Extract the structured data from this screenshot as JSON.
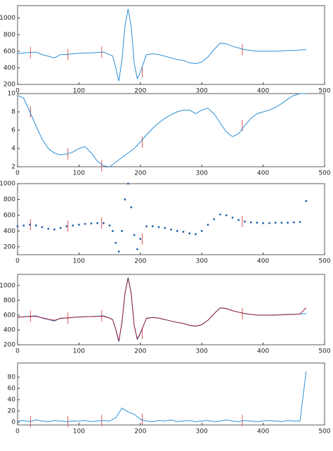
{
  "chart_data": [
    {
      "type": "line",
      "x": [
        0,
        10,
        20,
        30,
        40,
        50,
        60,
        70,
        80,
        90,
        100,
        110,
        120,
        130,
        140,
        150,
        155,
        160,
        165,
        170,
        175,
        180,
        185,
        190,
        195,
        200,
        210,
        220,
        230,
        240,
        250,
        260,
        270,
        280,
        290,
        300,
        310,
        320,
        330,
        340,
        350,
        360,
        370,
        380,
        390,
        400,
        410,
        420,
        430,
        440,
        450,
        460,
        470
      ],
      "series": [
        {
          "color": "#2a8fd6",
          "values": [
            570,
            580,
            585,
            590,
            560,
            540,
            520,
            560,
            560,
            570,
            575,
            580,
            580,
            585,
            590,
            560,
            540,
            400,
            240,
            500,
            900,
            1110,
            900,
            450,
            270,
            350,
            560,
            570,
            560,
            540,
            520,
            500,
            490,
            460,
            450,
            470,
            530,
            620,
            700,
            690,
            660,
            640,
            620,
            610,
            600,
            600,
            600,
            600,
            605,
            610,
            610,
            615,
            620
          ]
        }
      ],
      "vlines": [
        21,
        82,
        137,
        203,
        366
      ],
      "vline_color": "#e05050",
      "xlim": [
        0,
        500
      ],
      "xticks": [
        0,
        100,
        200,
        300,
        400,
        500
      ],
      "ylim": [
        200,
        1150
      ],
      "yticks": [
        200,
        400,
        600,
        800,
        1000
      ]
    },
    {
      "type": "line",
      "x": [
        0,
        10,
        20,
        30,
        40,
        50,
        60,
        70,
        80,
        90,
        100,
        110,
        120,
        130,
        140,
        150,
        160,
        170,
        180,
        190,
        200,
        210,
        220,
        230,
        240,
        250,
        260,
        270,
        280,
        290,
        300,
        310,
        320,
        330,
        340,
        350,
        360,
        370,
        380,
        390,
        400,
        410,
        420,
        430,
        440,
        450,
        460,
        470
      ],
      "series": [
        {
          "color": "#2a8fd6",
          "values": [
            9.8,
            9.5,
            8,
            6.5,
            5,
            4,
            3.5,
            3.3,
            3.4,
            3.6,
            4.0,
            4.2,
            3.5,
            2.6,
            2.1,
            2.0,
            2.5,
            3,
            3.5,
            4,
            4.7,
            5.5,
            6.2,
            6.8,
            7.3,
            7.7,
            8,
            8.2,
            8.2,
            7.8,
            8.2,
            8.4,
            7.8,
            6.8,
            5.8,
            5.3,
            5.6,
            6.5,
            7.3,
            7.8,
            8,
            8.2,
            8.5,
            8.9,
            9.4,
            9.8,
            10,
            10
          ]
        }
      ],
      "vlines": [
        21,
        82,
        137,
        203,
        366
      ],
      "vline_color": "#e05050",
      "xlim": [
        0,
        500
      ],
      "xticks": [
        0,
        100,
        200,
        300,
        400,
        500
      ],
      "ylim": [
        2,
        10
      ],
      "yticks": [
        2,
        4,
        6,
        8,
        10
      ]
    },
    {
      "type": "scatter",
      "x": [
        0,
        10,
        20,
        30,
        40,
        50,
        60,
        70,
        80,
        90,
        100,
        110,
        120,
        130,
        140,
        150,
        155,
        160,
        165,
        170,
        175,
        180,
        185,
        190,
        195,
        200,
        210,
        220,
        230,
        240,
        250,
        260,
        270,
        280,
        290,
        300,
        310,
        320,
        330,
        340,
        350,
        360,
        370,
        380,
        390,
        400,
        410,
        420,
        430,
        440,
        450,
        460,
        470
      ],
      "series": [
        {
          "color": "#1f5fb0",
          "values": [
            460,
            470,
            480,
            470,
            450,
            430,
            420,
            440,
            460,
            470,
            480,
            490,
            495,
            500,
            500,
            470,
            400,
            250,
            140,
            400,
            800,
            1000,
            700,
            350,
            170,
            300,
            460,
            460,
            450,
            440,
            420,
            400,
            390,
            370,
            360,
            400,
            480,
            550,
            610,
            600,
            570,
            540,
            520,
            510,
            505,
            500,
            500,
            505,
            505,
            505,
            510,
            515,
            780
          ]
        }
      ],
      "vlines": [
        21,
        82,
        137,
        203,
        366
      ],
      "vline_color": "#e05050",
      "xlim": [
        0,
        500
      ],
      "xticks": [
        0,
        100,
        200,
        300,
        400,
        500
      ],
      "ylim": [
        100,
        1000
      ],
      "yticks": [
        200,
        400,
        600,
        800,
        1000
      ]
    },
    {
      "type": "line",
      "x": [
        0,
        10,
        20,
        30,
        40,
        50,
        60,
        70,
        80,
        90,
        100,
        110,
        120,
        130,
        140,
        150,
        155,
        160,
        165,
        170,
        175,
        180,
        185,
        190,
        195,
        200,
        210,
        220,
        230,
        240,
        250,
        260,
        270,
        280,
        290,
        300,
        310,
        320,
        330,
        340,
        350,
        360,
        370,
        380,
        390,
        400,
        410,
        420,
        430,
        440,
        450,
        460,
        470
      ],
      "series": [
        {
          "color": "#2a8fd6",
          "values": [
            570,
            580,
            585,
            590,
            560,
            540,
            520,
            560,
            560,
            570,
            575,
            580,
            580,
            585,
            590,
            560,
            540,
            400,
            240,
            500,
            900,
            1110,
            900,
            450,
            270,
            350,
            560,
            570,
            560,
            540,
            520,
            500,
            490,
            460,
            450,
            470,
            530,
            620,
            700,
            690,
            660,
            640,
            620,
            610,
            600,
            600,
            600,
            600,
            605,
            610,
            610,
            615,
            620
          ]
        },
        {
          "color": "#a01c3c",
          "values": [
            572,
            578,
            582,
            585,
            565,
            545,
            530,
            555,
            562,
            570,
            575,
            578,
            580,
            584,
            585,
            560,
            535,
            410,
            250,
            510,
            890,
            1100,
            890,
            460,
            280,
            360,
            555,
            568,
            558,
            540,
            520,
            502,
            488,
            462,
            452,
            472,
            532,
            618,
            698,
            688,
            660,
            640,
            622,
            610,
            602,
            600,
            600,
            602,
            605,
            608,
            610,
            615,
            700
          ]
        }
      ],
      "vlines": [
        21,
        82,
        137,
        203,
        366
      ],
      "vline_color": "#e05050",
      "xlim": [
        0,
        500
      ],
      "xticks": [
        0,
        100,
        200,
        300,
        400,
        500
      ],
      "ylim": [
        200,
        1150
      ],
      "yticks": [
        200,
        400,
        600,
        800,
        1000
      ]
    },
    {
      "type": "line",
      "x": [
        0,
        10,
        20,
        30,
        40,
        50,
        60,
        70,
        80,
        90,
        100,
        110,
        120,
        130,
        140,
        150,
        160,
        170,
        180,
        190,
        200,
        210,
        220,
        230,
        240,
        250,
        260,
        270,
        280,
        290,
        300,
        310,
        320,
        330,
        340,
        350,
        360,
        370,
        380,
        390,
        400,
        410,
        420,
        430,
        440,
        450,
        460,
        470
      ],
      "series": [
        {
          "color": "#2a8fd6",
          "values": [
            2,
            3,
            1,
            4,
            2,
            1,
            3,
            2,
            1,
            2,
            2,
            3,
            1,
            2,
            3,
            2,
            8,
            25,
            18,
            14,
            5,
            2,
            1,
            3,
            2,
            4,
            1,
            2,
            3,
            1,
            2,
            3,
            1,
            2,
            4,
            2,
            1,
            3,
            2,
            1,
            2,
            3,
            2,
            1,
            3,
            2,
            2,
            90
          ]
        }
      ],
      "vlines": [
        21,
        82,
        137,
        203,
        366
      ],
      "vline_color": "#e05050",
      "xlim": [
        0,
        500
      ],
      "xticks": [
        0,
        100,
        200,
        300,
        400,
        500
      ],
      "ylim": [
        -5,
        105
      ],
      "yticks": [
        0,
        20,
        40,
        60,
        80
      ]
    }
  ]
}
